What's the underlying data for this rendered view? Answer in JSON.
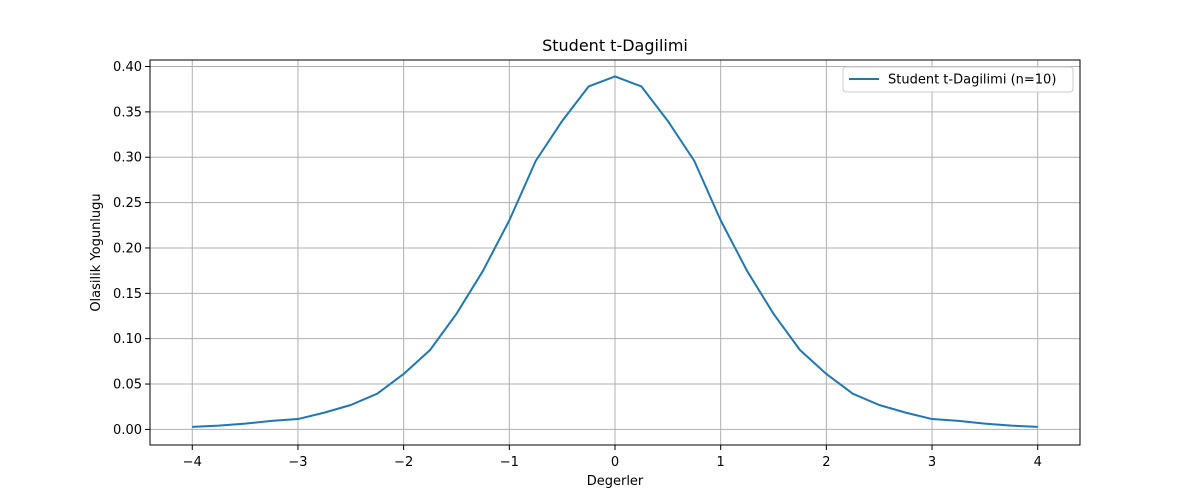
{
  "chart_data": {
    "type": "line",
    "title": "Student t-Dagilimi",
    "xlabel": "Degerler",
    "ylabel": "Olasilik Yogunlugu",
    "xlim": [
      -4.4,
      4.4
    ],
    "ylim": [
      -0.0172,
      0.4072
    ],
    "xticks": [
      -4,
      -3,
      -2,
      -1,
      0,
      1,
      2,
      3,
      4
    ],
    "xtick_labels": [
      "−4",
      "−3",
      "−2",
      "−1",
      "0",
      "1",
      "2",
      "3",
      "4"
    ],
    "yticks": [
      0.0,
      0.05,
      0.1,
      0.15,
      0.2,
      0.25,
      0.3,
      0.35,
      0.4
    ],
    "ytick_labels": [
      "0.00",
      "0.05",
      "0.10",
      "0.15",
      "0.20",
      "0.25",
      "0.30",
      "0.35",
      "0.40"
    ],
    "grid": true,
    "legend_position": "top-right",
    "series": [
      {
        "name": "Student t-Dagilimi (n=10)",
        "color": "#1f77b4",
        "x": [
          -4.0,
          -3.75,
          -3.5,
          -3.25,
          -3.0,
          -2.75,
          -2.5,
          -2.25,
          -2.0,
          -1.75,
          -1.5,
          -1.25,
          -1.0,
          -0.75,
          -0.5,
          -0.25,
          0.0,
          0.25,
          0.5,
          0.75,
          1.0,
          1.25,
          1.5,
          1.75,
          2.0,
          2.25,
          2.5,
          2.75,
          3.0,
          3.25,
          3.5,
          3.75,
          4.0
        ],
        "y": [
          0.0028,
          0.0042,
          0.0063,
          0.0094,
          0.0114,
          0.0185,
          0.0269,
          0.0394,
          0.0611,
          0.0875,
          0.1274,
          0.1747,
          0.2304,
          0.296,
          0.34,
          0.378,
          0.3891,
          0.378,
          0.34,
          0.296,
          0.2304,
          0.1747,
          0.1274,
          0.0875,
          0.0611,
          0.0394,
          0.0269,
          0.0185,
          0.0114,
          0.0094,
          0.0063,
          0.0042,
          0.0028
        ]
      }
    ]
  }
}
